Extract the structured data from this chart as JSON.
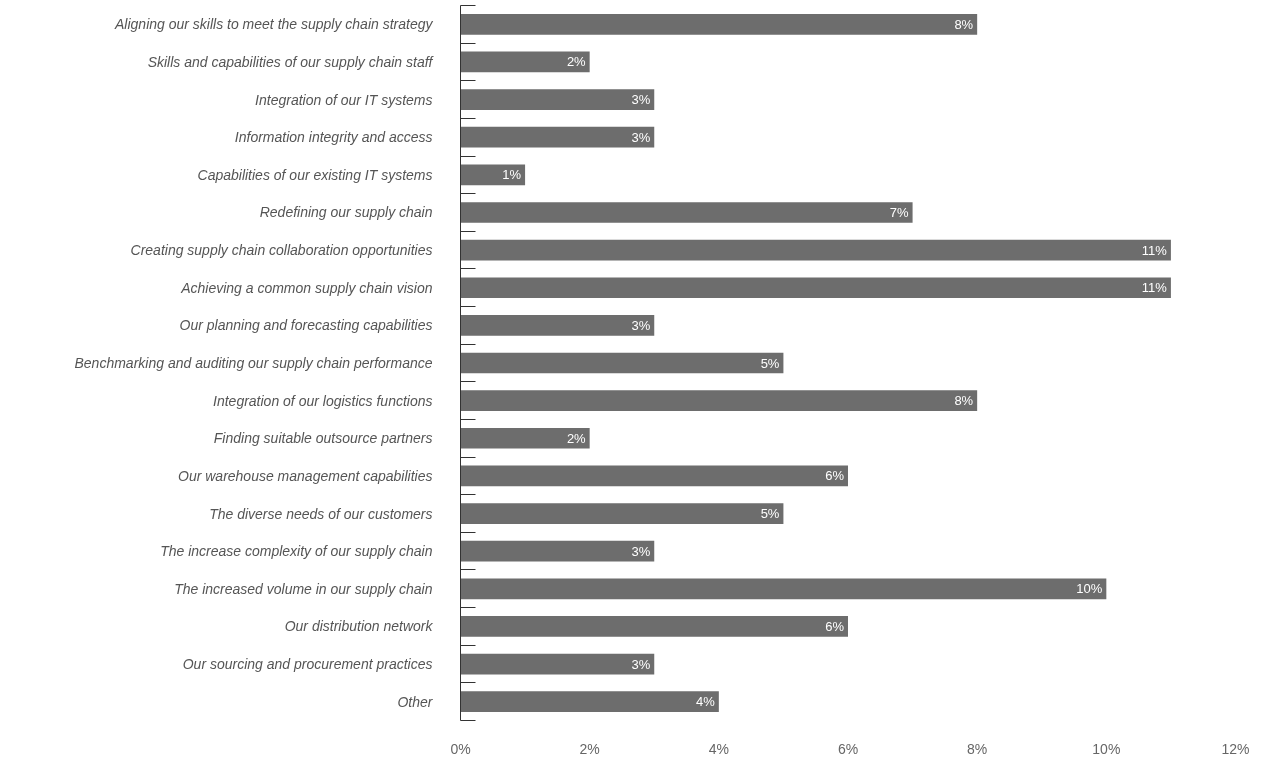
{
  "chart_data": {
    "type": "bar",
    "orientation": "horizontal",
    "categories": [
      "Aligning our skills to meet the supply chain strategy",
      "Skills and capabilities of our supply chain staff",
      "Integration of our IT systems",
      "Information integrity and access",
      "Capabilities of our existing IT systems",
      "Redefining our supply chain",
      "Creating supply chain collaboration opportunities",
      "Achieving a common supply chain vision",
      "Our planning and forecasting capabilities",
      "Benchmarking and auditing our supply chain performance",
      "Integration of our logistics functions",
      "Finding suitable outsource partners",
      "Our warehouse management capabilities",
      "The diverse needs of our customers",
      "The increase complexity of our supply chain",
      "The increased volume in our supply chain",
      "Our distribution network",
      "Our sourcing and procurement practices",
      "Other"
    ],
    "values": [
      8,
      2,
      3,
      3,
      1,
      7,
      11,
      11,
      3,
      5,
      8,
      2,
      6,
      5,
      3,
      10,
      6,
      3,
      4
    ],
    "value_labels": [
      "8%",
      "2%",
      "3%",
      "3%",
      "1%",
      "7%",
      "11%",
      "11%",
      "3%",
      "5%",
      "8%",
      "2%",
      "6%",
      "5%",
      "3%",
      "10%",
      "6%",
      "3%",
      "4%"
    ],
    "color": "#6d6d6d",
    "xlim": [
      0,
      12
    ],
    "xticks": [
      {
        "value": 0,
        "label": "0%"
      },
      {
        "value": 2,
        "label": "2%"
      },
      {
        "value": 4,
        "label": "4%"
      },
      {
        "value": 6,
        "label": "6%"
      },
      {
        "value": 8,
        "label": "8%"
      },
      {
        "value": 10,
        "label": "10%"
      },
      {
        "value": 12,
        "label": "12%"
      }
    ],
    "grid": false
  }
}
